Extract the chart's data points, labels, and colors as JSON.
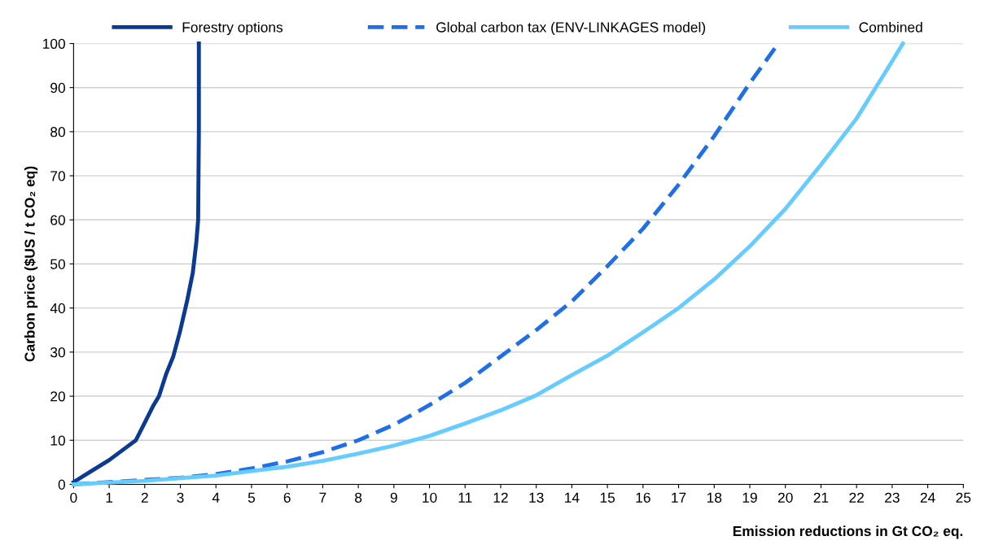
{
  "chart_data": {
    "type": "line",
    "xlabel": "Emission reductions in Gt CO₂ eq.",
    "ylabel": "Carbon price ($US / t CO₂ eq)",
    "xlim": [
      0,
      25
    ],
    "ylim": [
      0,
      100
    ],
    "xticks": [
      0,
      1,
      2,
      3,
      4,
      5,
      6,
      7,
      8,
      9,
      10,
      11,
      12,
      13,
      14,
      15,
      16,
      17,
      18,
      19,
      20,
      21,
      22,
      23,
      24,
      25
    ],
    "yticks": [
      0,
      10,
      20,
      30,
      40,
      50,
      60,
      70,
      80,
      90,
      100
    ],
    "grid": "y",
    "legend": "top",
    "marker": "none",
    "series": [
      {
        "name": "Forestry options",
        "color": "#0b3a94",
        "line_style": "solid",
        "x": [
          0,
          0.5,
          1,
          1.5,
          1.75,
          2,
          2.25,
          2.4,
          2.6,
          2.8,
          3,
          3.2,
          3.35,
          3.45,
          3.5,
          3.52,
          3.52
        ],
        "values": [
          0.5,
          3,
          5.5,
          8.5,
          10,
          14,
          18,
          20,
          25,
          29,
          35,
          42,
          48,
          55,
          60,
          80,
          100
        ]
      },
      {
        "name": "Global carbon tax (ENV-LINKAGES model)",
        "color": "#1f6fe8",
        "line_style": "dashed",
        "x": [
          0,
          1,
          2,
          3,
          4,
          5,
          6,
          7,
          8,
          9,
          10,
          11,
          12,
          13,
          14,
          15,
          16,
          17,
          18,
          19,
          19.8
        ],
        "values": [
          0,
          0.5,
          1,
          1.5,
          2.3,
          3.6,
          5.2,
          7.3,
          10,
          13.5,
          18,
          23,
          29,
          35,
          41.5,
          49.5,
          58,
          68,
          79,
          91,
          100
        ]
      },
      {
        "name": "Combined",
        "color": "#66ccff",
        "line_style": "solid",
        "x": [
          0,
          2,
          4,
          5,
          6,
          7,
          8,
          9,
          10,
          11,
          12,
          13,
          14,
          15,
          16,
          17,
          18,
          19,
          20,
          21,
          22,
          23,
          23.3
        ],
        "values": [
          0,
          0.8,
          2,
          3,
          4,
          5.3,
          7,
          8.8,
          11,
          13.8,
          16.8,
          20.2,
          24.8,
          29.2,
          34.5,
          40,
          46.5,
          54,
          62.5,
          72.5,
          83,
          96,
          100
        ]
      }
    ]
  }
}
